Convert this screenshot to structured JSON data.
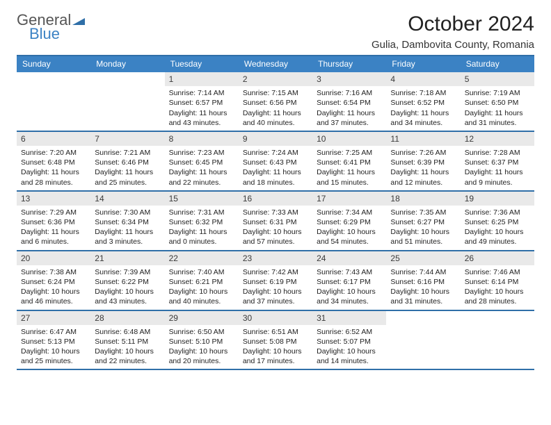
{
  "brand": {
    "part1": "General",
    "part2": "Blue",
    "tri_color": "#2f6fa8"
  },
  "title": "October 2024",
  "location": "Gulia, Dambovita County, Romania",
  "colors": {
    "header_bg": "#3b82c4",
    "rule": "#2f6fa8",
    "daynum_bg": "#e9e9e9",
    "text": "#222222",
    "page_bg": "#ffffff"
  },
  "days_of_week": [
    "Sunday",
    "Monday",
    "Tuesday",
    "Wednesday",
    "Thursday",
    "Friday",
    "Saturday"
  ],
  "weeks": [
    [
      {
        "n": null
      },
      {
        "n": null
      },
      {
        "n": 1,
        "sr": "7:14 AM",
        "ss": "6:57 PM",
        "dl": "11 hours and 43 minutes."
      },
      {
        "n": 2,
        "sr": "7:15 AM",
        "ss": "6:56 PM",
        "dl": "11 hours and 40 minutes."
      },
      {
        "n": 3,
        "sr": "7:16 AM",
        "ss": "6:54 PM",
        "dl": "11 hours and 37 minutes."
      },
      {
        "n": 4,
        "sr": "7:18 AM",
        "ss": "6:52 PM",
        "dl": "11 hours and 34 minutes."
      },
      {
        "n": 5,
        "sr": "7:19 AM",
        "ss": "6:50 PM",
        "dl": "11 hours and 31 minutes."
      }
    ],
    [
      {
        "n": 6,
        "sr": "7:20 AM",
        "ss": "6:48 PM",
        "dl": "11 hours and 28 minutes."
      },
      {
        "n": 7,
        "sr": "7:21 AM",
        "ss": "6:46 PM",
        "dl": "11 hours and 25 minutes."
      },
      {
        "n": 8,
        "sr": "7:23 AM",
        "ss": "6:45 PM",
        "dl": "11 hours and 22 minutes."
      },
      {
        "n": 9,
        "sr": "7:24 AM",
        "ss": "6:43 PM",
        "dl": "11 hours and 18 minutes."
      },
      {
        "n": 10,
        "sr": "7:25 AM",
        "ss": "6:41 PM",
        "dl": "11 hours and 15 minutes."
      },
      {
        "n": 11,
        "sr": "7:26 AM",
        "ss": "6:39 PM",
        "dl": "11 hours and 12 minutes."
      },
      {
        "n": 12,
        "sr": "7:28 AM",
        "ss": "6:37 PM",
        "dl": "11 hours and 9 minutes."
      }
    ],
    [
      {
        "n": 13,
        "sr": "7:29 AM",
        "ss": "6:36 PM",
        "dl": "11 hours and 6 minutes."
      },
      {
        "n": 14,
        "sr": "7:30 AM",
        "ss": "6:34 PM",
        "dl": "11 hours and 3 minutes."
      },
      {
        "n": 15,
        "sr": "7:31 AM",
        "ss": "6:32 PM",
        "dl": "11 hours and 0 minutes."
      },
      {
        "n": 16,
        "sr": "7:33 AM",
        "ss": "6:31 PM",
        "dl": "10 hours and 57 minutes."
      },
      {
        "n": 17,
        "sr": "7:34 AM",
        "ss": "6:29 PM",
        "dl": "10 hours and 54 minutes."
      },
      {
        "n": 18,
        "sr": "7:35 AM",
        "ss": "6:27 PM",
        "dl": "10 hours and 51 minutes."
      },
      {
        "n": 19,
        "sr": "7:36 AM",
        "ss": "6:25 PM",
        "dl": "10 hours and 49 minutes."
      }
    ],
    [
      {
        "n": 20,
        "sr": "7:38 AM",
        "ss": "6:24 PM",
        "dl": "10 hours and 46 minutes."
      },
      {
        "n": 21,
        "sr": "7:39 AM",
        "ss": "6:22 PM",
        "dl": "10 hours and 43 minutes."
      },
      {
        "n": 22,
        "sr": "7:40 AM",
        "ss": "6:21 PM",
        "dl": "10 hours and 40 minutes."
      },
      {
        "n": 23,
        "sr": "7:42 AM",
        "ss": "6:19 PM",
        "dl": "10 hours and 37 minutes."
      },
      {
        "n": 24,
        "sr": "7:43 AM",
        "ss": "6:17 PM",
        "dl": "10 hours and 34 minutes."
      },
      {
        "n": 25,
        "sr": "7:44 AM",
        "ss": "6:16 PM",
        "dl": "10 hours and 31 minutes."
      },
      {
        "n": 26,
        "sr": "7:46 AM",
        "ss": "6:14 PM",
        "dl": "10 hours and 28 minutes."
      }
    ],
    [
      {
        "n": 27,
        "sr": "6:47 AM",
        "ss": "5:13 PM",
        "dl": "10 hours and 25 minutes."
      },
      {
        "n": 28,
        "sr": "6:48 AM",
        "ss": "5:11 PM",
        "dl": "10 hours and 22 minutes."
      },
      {
        "n": 29,
        "sr": "6:50 AM",
        "ss": "5:10 PM",
        "dl": "10 hours and 20 minutes."
      },
      {
        "n": 30,
        "sr": "6:51 AM",
        "ss": "5:08 PM",
        "dl": "10 hours and 17 minutes."
      },
      {
        "n": 31,
        "sr": "6:52 AM",
        "ss": "5:07 PM",
        "dl": "10 hours and 14 minutes."
      },
      {
        "n": null
      },
      {
        "n": null
      }
    ]
  ],
  "labels": {
    "sunrise": "Sunrise:",
    "sunset": "Sunset:",
    "daylight": "Daylight:"
  }
}
